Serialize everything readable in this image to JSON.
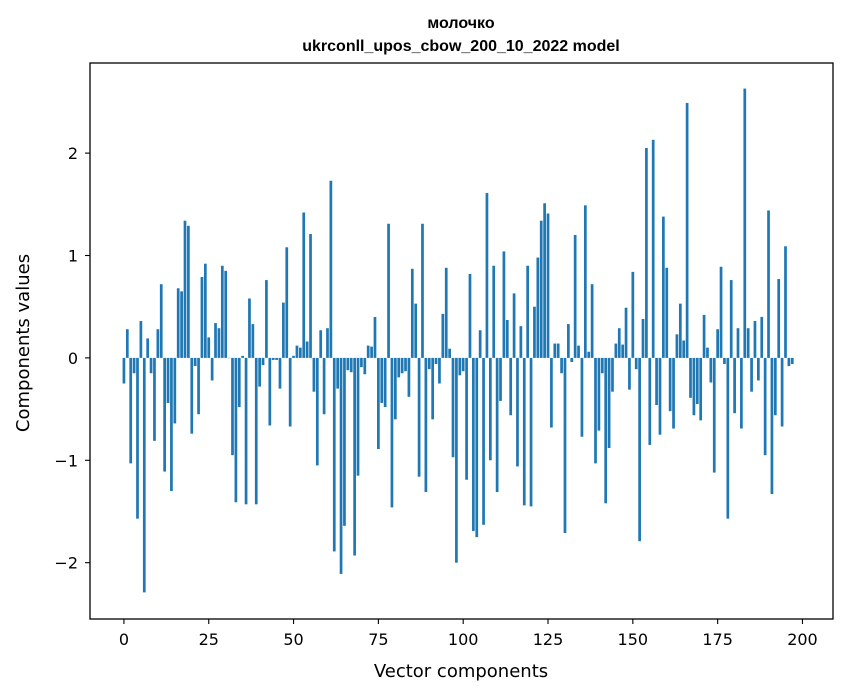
{
  "chart_data": {
    "type": "bar",
    "title": "молочко",
    "subtitle": "ukrconll_upos_cbow_200_10_2022 model",
    "xlabel": "Vector components",
    "ylabel": "Components values",
    "xlim": [
      -10,
      209
    ],
    "ylim": [
      -2.55,
      2.88
    ],
    "xticks": [
      0,
      25,
      50,
      75,
      100,
      125,
      150,
      175,
      200
    ],
    "xtick_labels": [
      "0",
      "25",
      "50",
      "75",
      "100",
      "125",
      "150",
      "175",
      "200"
    ],
    "yticks": [
      2,
      1,
      0,
      -1,
      -2
    ],
    "ytick_labels": [
      "2",
      "1",
      "0",
      "−1",
      "−2"
    ],
    "grid": false,
    "bar_color": "#1f77b4",
    "values": [
      -0.25,
      0.28,
      -1.03,
      -0.15,
      -1.57,
      0.36,
      -2.29,
      0.19,
      -0.15,
      -0.81,
      0.28,
      0.72,
      -1.11,
      -0.44,
      -1.3,
      -0.64,
      0.68,
      0.65,
      1.34,
      1.29,
      -0.74,
      -0.08,
      -0.55,
      0.79,
      0.92,
      0.2,
      -0.22,
      0.34,
      0.29,
      0.9,
      0.85,
      0.0,
      -0.95,
      -1.41,
      -0.48,
      0.02,
      -1.43,
      0.58,
      0.33,
      -1.43,
      -0.28,
      -0.07,
      0.76,
      -0.66,
      -0.02,
      -0.02,
      -0.3,
      0.54,
      1.08,
      -0.67,
      0.02,
      0.12,
      0.1,
      1.42,
      0.16,
      1.21,
      -0.33,
      -1.05,
      0.27,
      -0.55,
      0.29,
      1.73,
      -1.89,
      -0.3,
      -2.11,
      -1.64,
      -0.12,
      -0.14,
      -1.93,
      -1.15,
      -0.09,
      -0.16,
      0.12,
      0.11,
      0.4,
      -0.89,
      -0.44,
      -0.48,
      1.31,
      -1.46,
      -0.6,
      -0.19,
      -0.15,
      -0.13,
      -0.38,
      0.87,
      0.53,
      -1.16,
      1.31,
      -1.31,
      -0.11,
      -0.6,
      -0.06,
      -0.25,
      0.43,
      0.88,
      0.09,
      -0.97,
      -2.0,
      -0.17,
      -0.13,
      -1.19,
      0.82,
      -1.69,
      -1.75,
      0.27,
      -1.63,
      1.61,
      -1.0,
      0.9,
      -1.31,
      -0.42,
      1.04,
      0.37,
      -0.56,
      0.63,
      -1.06,
      0.31,
      -1.44,
      0.9,
      -1.45,
      0.5,
      0.98,
      1.34,
      1.51,
      1.41,
      -0.68,
      0.14,
      0.14,
      -0.15,
      -1.71,
      0.33,
      -0.04,
      1.2,
      0.12,
      -0.77,
      1.49,
      0.06,
      0.72,
      -1.03,
      -0.71,
      -0.15,
      -1.42,
      -0.88,
      -0.33,
      0.14,
      0.29,
      0.13,
      0.49,
      -0.31,
      0.84,
      -0.11,
      -1.79,
      0.38,
      2.05,
      -0.85,
      2.13,
      -0.46,
      -0.75,
      1.38,
      0.88,
      -0.52,
      -0.69,
      0.23,
      0.53,
      0.17,
      2.49,
      -0.39,
      -0.56,
      -0.45,
      -0.61,
      0.42,
      0.1,
      -0.24,
      -1.12,
      0.28,
      0.89,
      -0.06,
      -1.57,
      0.76,
      -0.54,
      0.29,
      -0.69,
      2.63,
      0.29,
      -0.33,
      0.36,
      -0.22,
      0.4,
      -0.95,
      1.44,
      -1.33,
      -0.56,
      0.77,
      -0.67,
      1.09,
      -0.08,
      -0.06
    ]
  }
}
